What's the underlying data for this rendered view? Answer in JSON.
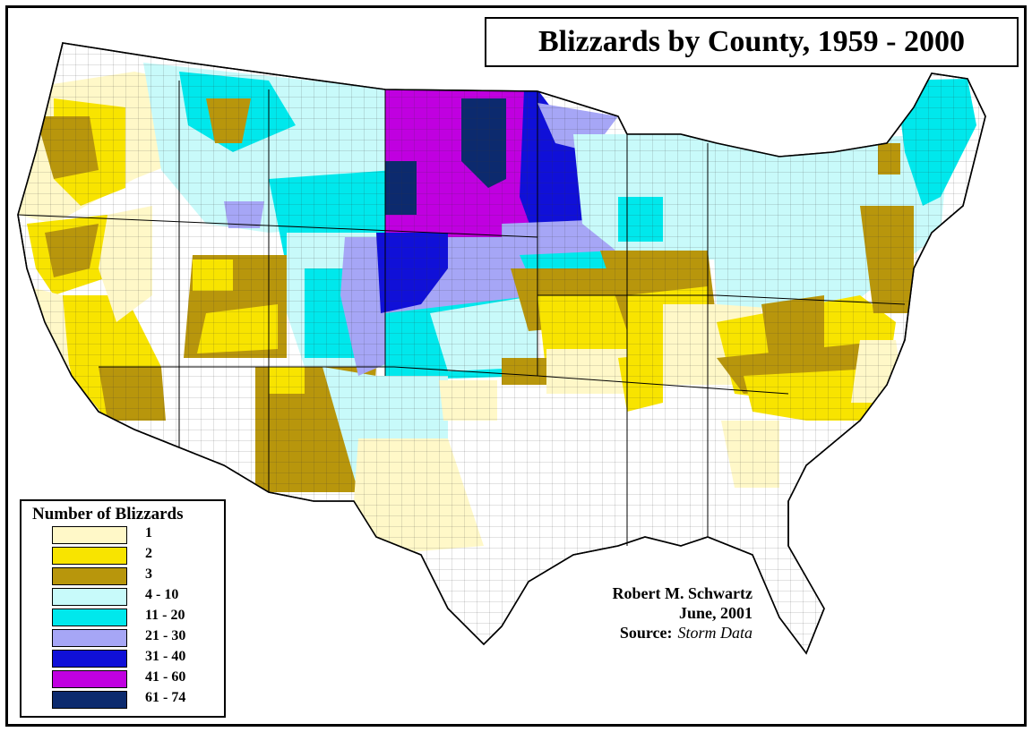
{
  "title": "Blizzards by County, 1959 - 2000",
  "legend": {
    "title": "Number of Blizzards",
    "items": [
      {
        "label": "1",
        "color": "#FFF8C8"
      },
      {
        "label": "2",
        "color": "#F8E400"
      },
      {
        "label": "3",
        "color": "#B8960C"
      },
      {
        "label": "4 - 10",
        "color": "#C8FAFA"
      },
      {
        "label": "11 - 20",
        "color": "#00E8EC"
      },
      {
        "label": "21 - 30",
        "color": "#A6A6F6"
      },
      {
        "label": "31 - 40",
        "color": "#1010D8"
      },
      {
        "label": "41 - 60",
        "color": "#C000E0"
      },
      {
        "label": "61 - 74",
        "color": "#0C2A6E"
      }
    ]
  },
  "credit": {
    "author": "Robert M. Schwartz",
    "date": "June, 2001",
    "source_label": "Source:",
    "source_value": "Storm Data"
  }
}
